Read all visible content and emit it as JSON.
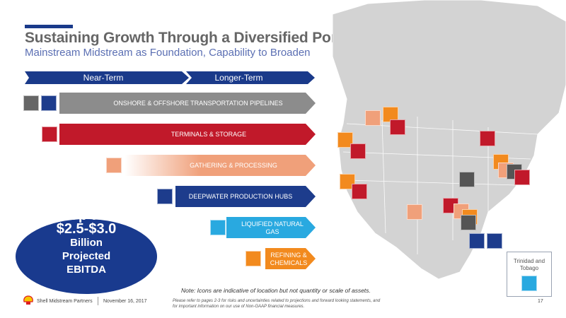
{
  "header": {
    "title": "Sustaining Growth Through a Diversified Portfolio",
    "subtitle": "Mainstream Midstream as Foundation, Capability to Broaden"
  },
  "phases": {
    "near": "Near-Term",
    "longer": "Longer-Term"
  },
  "rows": [
    {
      "label": "ONSHORE & OFFSHORE TRANSPORTATION PIPELINES",
      "color": "#8c8c8c",
      "icons": [
        "pipeline-icon",
        "offshore-pipeline-icon"
      ]
    },
    {
      "label": "TERMINALS & STORAGE",
      "color": "#c1192a",
      "icons": [
        "storage-tank-icon"
      ]
    },
    {
      "label": "GATHERING & PROCESSING",
      "color": "#f0a07a",
      "icons": [
        "processing-plant-icon"
      ]
    },
    {
      "label": "DEEPWATER PRODUCTION HUBS",
      "color": "#1d3c8c",
      "icons": [
        "offshore-platform-icon"
      ]
    },
    {
      "label": "LIQUIFIED NATURAL GAS",
      "color": "#29a9e0",
      "icons": [
        "lng-plant-icon"
      ]
    },
    {
      "label": "REFINING & CHEMICALS",
      "color": "#f28a1e",
      "icons": [
        "refinery-icon"
      ]
    }
  ],
  "ebitda": {
    "line1": "Up to",
    "line2": "$2.5-$3.0",
    "line3": "Billion",
    "line4": "Projected",
    "line5": "EBITDA"
  },
  "note": "Note: Icons are indicative of location but not quantity or scale of assets.",
  "fine_print": "Please refer to pages 2-3 for risks and uncertainties related to projections and forward looking statements, and for important information on our use of Non-GAAP financial measures.",
  "footer": {
    "company": "Shell Midstream Partners",
    "date": "November 16, 2017",
    "page": "17"
  },
  "trinidad": {
    "label": "Trinidad and Tobago"
  },
  "colors": {
    "navy": "#1a3a8a",
    "red": "#c1192a",
    "gray": "#8c8c8c",
    "peach": "#f0a07a",
    "blue": "#29a9e0",
    "orange": "#f28a1e"
  }
}
